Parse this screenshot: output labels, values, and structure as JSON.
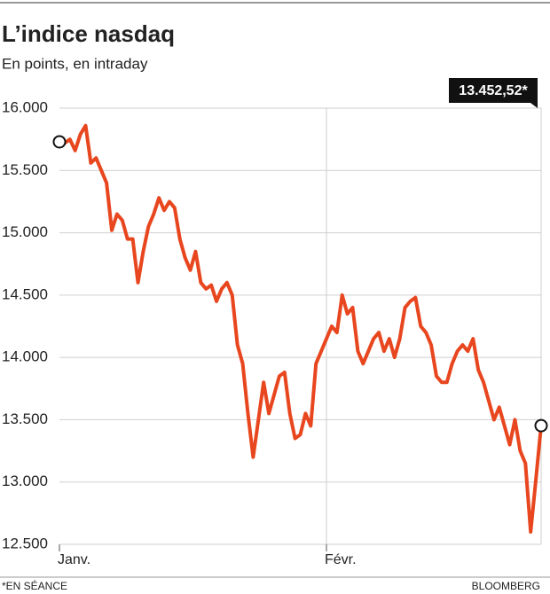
{
  "chart_data": {
    "type": "line",
    "title": "L’indice nasdaq",
    "subtitle": "En points, en intraday",
    "annotation": "13.452,52*",
    "footnote": "*EN SÉANCE",
    "source": "BLOOMBERG",
    "categories": [
      "Janv.",
      null,
      null,
      null,
      null,
      null,
      null,
      null,
      null,
      null,
      null,
      null,
      null,
      null,
      null,
      null,
      null,
      null,
      null,
      null,
      null,
      null,
      null,
      null,
      null,
      null,
      null,
      null,
      null,
      null,
      null,
      null,
      null,
      null,
      null,
      null,
      null,
      null,
      null,
      null,
      null,
      null,
      null,
      null,
      null,
      null,
      null,
      null,
      null,
      null,
      null,
      "Févr.",
      null,
      null,
      null,
      null,
      null,
      null,
      null,
      null,
      null,
      null,
      null,
      null,
      null,
      null,
      null,
      null,
      null,
      null,
      null,
      null,
      null,
      null,
      null,
      null,
      null,
      null,
      null,
      null,
      null,
      null,
      null,
      null,
      null,
      null,
      null,
      null,
      null,
      null,
      null,
      null,
      null
    ],
    "series": [
      {
        "color": "#e8461e",
        "values": [
          15730,
          15720,
          15750,
          15660,
          15790,
          15860,
          15560,
          15600,
          15500,
          15400,
          15020,
          15150,
          15100,
          14950,
          14950,
          14600,
          14850,
          15050,
          15150,
          15280,
          15180,
          15250,
          15200,
          14950,
          14800,
          14700,
          14850,
          14600,
          14550,
          14580,
          14450,
          14550,
          14600,
          14500,
          14100,
          13950,
          13550,
          13200,
          13500,
          13800,
          13550,
          13700,
          13850,
          13880,
          13550,
          13350,
          13380,
          13550,
          13450,
          13950,
          14050,
          14150,
          14250,
          14200,
          14500,
          14350,
          14400,
          14050,
          13950,
          14050,
          14150,
          14200,
          14050,
          14150,
          14000,
          14150,
          14400,
          14450,
          14480,
          14250,
          14200,
          14100,
          13850,
          13800,
          13800,
          13950,
          14050,
          14100,
          14050,
          14150,
          13900,
          13800,
          13650,
          13500,
          13600,
          13450,
          13300,
          13500,
          13250,
          13150,
          12600,
          13020,
          13452.52
        ]
      }
    ],
    "ylim": [
      12500,
      16000
    ],
    "yticks": [
      {
        "value": 12500,
        "label": "12.500"
      },
      {
        "value": 13000,
        "label": "13.000"
      },
      {
        "value": 13500,
        "label": "13.500"
      },
      {
        "value": 14000,
        "label": "14.000"
      },
      {
        "value": 14500,
        "label": "14.500"
      },
      {
        "value": 15000,
        "label": "15.000"
      },
      {
        "value": 15500,
        "label": "15.500"
      },
      {
        "value": 16000,
        "label": "16.000"
      }
    ],
    "grid": true
  }
}
